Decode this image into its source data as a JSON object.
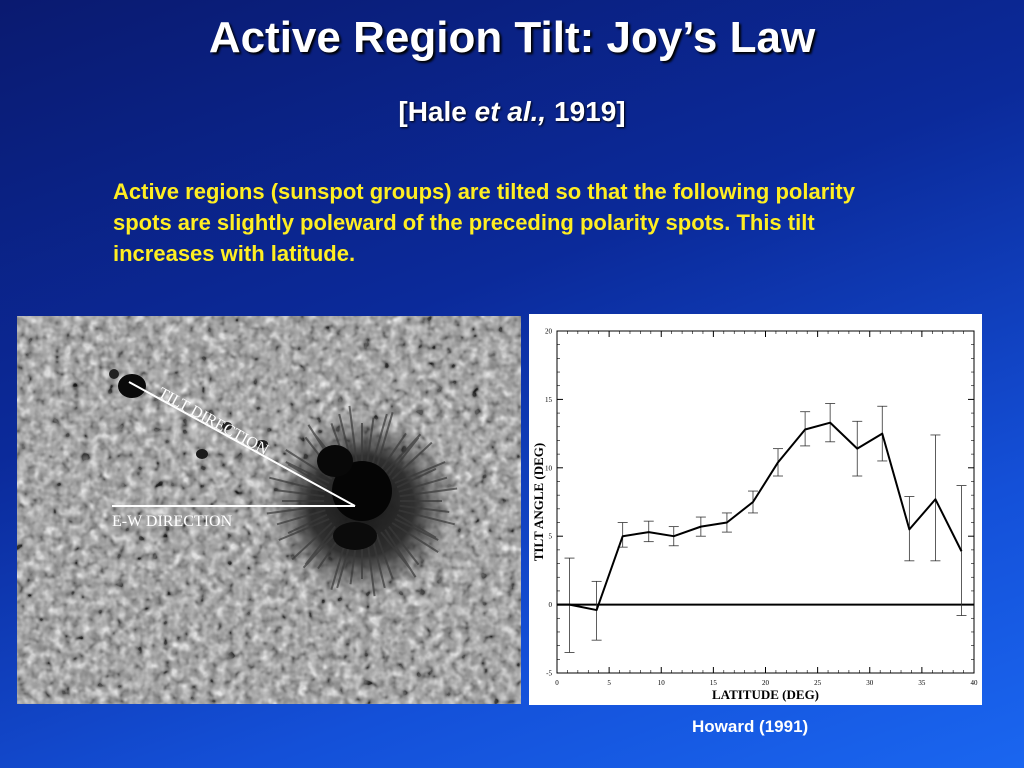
{
  "slide": {
    "title": "Active Region Tilt: Joy’s Law",
    "citation": {
      "open": "[Hale ",
      "italic": "et al.,",
      "close": " 1919]"
    },
    "body": "Active regions (sunspot groups) are tilted so that the following polarity spots are slightly poleward of the preceding polarity spots. This tilt increases with latitude.",
    "credit": "Howard (1991)"
  },
  "photo": {
    "labels": {
      "tilt": "TILT DIRECTION",
      "ew": "E-W  DIRECTION"
    }
  },
  "chart_data": {
    "type": "line",
    "title": "",
    "xlabel": "LATITUDE (DEG)",
    "ylabel": "TILT ANGLE (DEG)",
    "xlim": [
      0,
      40
    ],
    "ylim": [
      -5,
      20
    ],
    "xticks": [
      0,
      5,
      10,
      15,
      20,
      25,
      30,
      35,
      40
    ],
    "yticks": [
      -5,
      0,
      5,
      10,
      15,
      20
    ],
    "grid": false,
    "zero_line": true,
    "series": [
      {
        "x": [
          1.2,
          3.8,
          6.3,
          8.8,
          11.2,
          13.8,
          16.3,
          18.8,
          21.2,
          23.8,
          26.2,
          28.8,
          31.2,
          33.8,
          36.3,
          38.8
        ],
        "y": [
          0.0,
          -0.4,
          5.0,
          5.3,
          5.0,
          5.7,
          6.0,
          7.5,
          10.4,
          12.8,
          13.3,
          11.4,
          12.5,
          5.5,
          7.7,
          3.9
        ],
        "err_low": [
          -3.5,
          -2.6,
          4.2,
          4.6,
          4.3,
          5.0,
          5.3,
          6.7,
          9.4,
          11.6,
          11.9,
          9.4,
          10.5,
          3.2,
          3.2,
          -0.8
        ],
        "err_high": [
          3.4,
          1.7,
          6.0,
          6.1,
          5.7,
          6.4,
          6.7,
          8.3,
          11.4,
          14.1,
          14.7,
          13.4,
          14.5,
          7.9,
          12.4,
          8.7
        ]
      }
    ]
  }
}
